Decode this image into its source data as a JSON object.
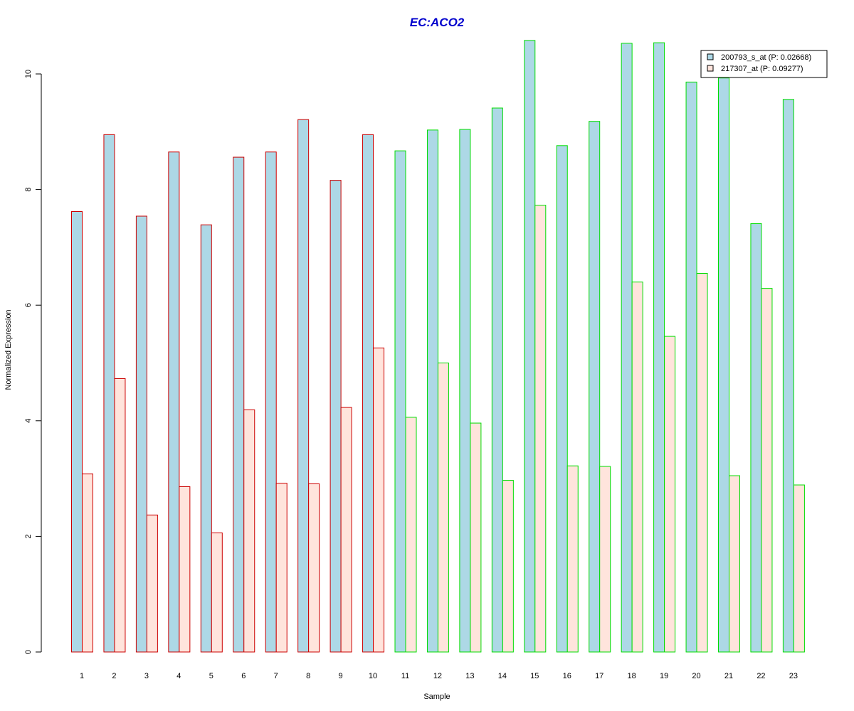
{
  "chart_data": {
    "type": "bar",
    "title": "EC:ACO2",
    "xlabel": "Sample",
    "ylabel": "Normalized Expression",
    "ylim": [
      0,
      10.6
    ],
    "yticks": [
      "0",
      "2",
      "4",
      "6",
      "8",
      "10"
    ],
    "categories": [
      "1",
      "2",
      "3",
      "4",
      "5",
      "6",
      "7",
      "8",
      "9",
      "10",
      "11",
      "12",
      "13",
      "14",
      "15",
      "16",
      "17",
      "18",
      "19",
      "20",
      "21",
      "22",
      "23"
    ],
    "group_outline_colors": [
      "#CC0000",
      "#CC0000",
      "#CC0000",
      "#CC0000",
      "#CC0000",
      "#CC0000",
      "#CC0000",
      "#CC0000",
      "#CC0000",
      "#CC0000",
      "#00DD00",
      "#00DD00",
      "#00DD00",
      "#00DD00",
      "#00DD00",
      "#00DD00",
      "#00DD00",
      "#00DD00",
      "#00DD00",
      "#00DD00",
      "#00DD00",
      "#00DD00",
      "#00DD00"
    ],
    "series": [
      {
        "name": "200793_s_at (P: 0.02668)",
        "fill": "#ADD8E6",
        "values": [
          7.62,
          8.95,
          7.54,
          8.65,
          7.39,
          8.56,
          8.65,
          9.21,
          8.16,
          8.95,
          8.67,
          9.03,
          9.04,
          9.41,
          10.58,
          8.76,
          9.18,
          10.53,
          10.54,
          9.86,
          9.93,
          7.41,
          9.56
        ]
      },
      {
        "name": "217307_at (P: 0.09277)",
        "fill": "#FFE4DC",
        "values": [
          3.08,
          4.73,
          2.37,
          2.86,
          2.06,
          4.19,
          2.92,
          2.91,
          4.23,
          5.26,
          4.06,
          5.0,
          3.96,
          2.97,
          7.73,
          3.22,
          3.21,
          6.4,
          5.46,
          6.55,
          3.05,
          6.29,
          2.89
        ]
      }
    ],
    "legend_position": "top-right",
    "grid": false
  }
}
